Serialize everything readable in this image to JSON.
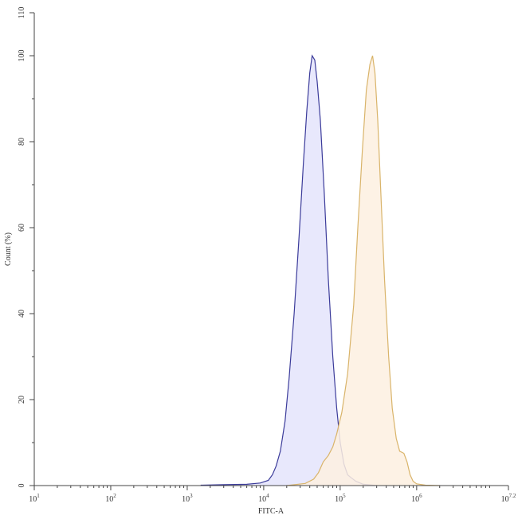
{
  "chart_data": {
    "type": "area",
    "xlabel": "FITC-A",
    "ylabel": "Count (%)",
    "xscale": "log",
    "xlim": [
      10,
      15848931.92
    ],
    "ylim": [
      0,
      110
    ],
    "x_ticks": [
      {
        "base": "10",
        "exp": "1",
        "value": 10
      },
      {
        "base": "10",
        "exp": "2",
        "value": 100
      },
      {
        "base": "10",
        "exp": "3",
        "value": 1000
      },
      {
        "base": "10",
        "exp": "4",
        "value": 10000
      },
      {
        "base": "10",
        "exp": "5",
        "value": 100000
      },
      {
        "base": "10",
        "exp": "6",
        "value": 1000000
      },
      {
        "base": "10",
        "exp": "7.2",
        "value": 15848931.92
      }
    ],
    "y_ticks": [
      {
        "label": "0",
        "value": 0
      },
      {
        "label": "20",
        "value": 20
      },
      {
        "label": "40",
        "value": 40
      },
      {
        "label": "60",
        "value": 60
      },
      {
        "label": "80",
        "value": 80
      },
      {
        "label": "100",
        "value": 100
      },
      {
        "label": "110",
        "value": 110
      }
    ],
    "series": [
      {
        "color": "#3b3b9a",
        "fill": "#e4e4fb",
        "points": [
          [
            1500,
            0.1
          ],
          [
            3000,
            0.2
          ],
          [
            6000,
            0.3
          ],
          [
            9000,
            0.6
          ],
          [
            11500,
            1.2
          ],
          [
            13000,
            2.5
          ],
          [
            14500,
            4.5
          ],
          [
            16500,
            8
          ],
          [
            19000,
            15
          ],
          [
            21500,
            25
          ],
          [
            25000,
            40
          ],
          [
            29000,
            58
          ],
          [
            33000,
            75
          ],
          [
            36500,
            87
          ],
          [
            40000,
            96
          ],
          [
            43000,
            100
          ],
          [
            46500,
            99
          ],
          [
            50000,
            94
          ],
          [
            55000,
            85
          ],
          [
            62000,
            68
          ],
          [
            70000,
            48
          ],
          [
            80000,
            30
          ],
          [
            90000,
            18
          ],
          [
            100000,
            10
          ],
          [
            112000,
            5
          ],
          [
            125000,
            2.5
          ],
          [
            140000,
            1.8
          ],
          [
            160000,
            1
          ],
          [
            200000,
            0.3
          ],
          [
            300000,
            0
          ]
        ]
      },
      {
        "color": "#d9b46a",
        "fill": "#fdf0e0",
        "points": [
          [
            20000,
            0
          ],
          [
            35000,
            0.5
          ],
          [
            45000,
            1.5
          ],
          [
            52000,
            3
          ],
          [
            60000,
            5.5
          ],
          [
            70000,
            7
          ],
          [
            80000,
            9
          ],
          [
            90000,
            12
          ],
          [
            105000,
            17
          ],
          [
            125000,
            26
          ],
          [
            150000,
            42
          ],
          [
            170000,
            60
          ],
          [
            195000,
            78
          ],
          [
            220000,
            92
          ],
          [
            245000,
            98
          ],
          [
            265000,
            100
          ],
          [
            285000,
            96
          ],
          [
            310000,
            85
          ],
          [
            340000,
            68
          ],
          [
            380000,
            48
          ],
          [
            430000,
            30
          ],
          [
            480000,
            18
          ],
          [
            540000,
            11
          ],
          [
            600000,
            8
          ],
          [
            680000,
            7.5
          ],
          [
            750000,
            5.5
          ],
          [
            820000,
            2.5
          ],
          [
            900000,
            1
          ],
          [
            1000000,
            0.4
          ],
          [
            1300000,
            0.1
          ],
          [
            2000000,
            0
          ]
        ]
      }
    ]
  }
}
